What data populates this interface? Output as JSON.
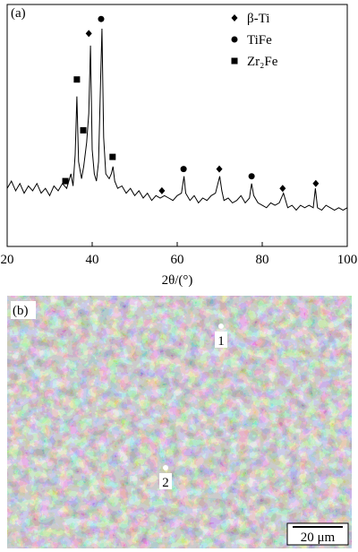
{
  "chart_data": {
    "type": "line",
    "panel_label": "(a)",
    "x_label": "2θ/(°)",
    "x": [
      20,
      21,
      22,
      23,
      24,
      25,
      26,
      27,
      28,
      29,
      30,
      31,
      32,
      33,
      34,
      35,
      35.5,
      36,
      36.4,
      36.8,
      37.5,
      38,
      38.7,
      39.2,
      39.6,
      40,
      40.5,
      41,
      41.5,
      42,
      42.3,
      42.7,
      43.2,
      44,
      44.5,
      44.9,
      45.3,
      46,
      47,
      48,
      49,
      50,
      51,
      52,
      53,
      54,
      55,
      56,
      57,
      58,
      59,
      60,
      61,
      61.6,
      62,
      63,
      64,
      65,
      66,
      67,
      68,
      69,
      70,
      70.5,
      71,
      72,
      73,
      74,
      75,
      76,
      77,
      77.5,
      78,
      79,
      80,
      81,
      82,
      83,
      84,
      85,
      86,
      87,
      88,
      89,
      90,
      91,
      92,
      92.5,
      93,
      94,
      95,
      96,
      97,
      98,
      99,
      100
    ],
    "series": [
      {
        "color": "#000000",
        "values": [
          24,
          27,
          23,
          26,
          22,
          25,
          23,
          26,
          22,
          24,
          21,
          25,
          23,
          26,
          24,
          30,
          25,
          38,
          62,
          35,
          28,
          33,
          43,
          55,
          83,
          40,
          30,
          27,
          35,
          70,
          90,
          45,
          30,
          28,
          30,
          33,
          27,
          24,
          25,
          22,
          24,
          21,
          23,
          20,
          22,
          19,
          21,
          20,
          21,
          20,
          19,
          21,
          22,
          29,
          22,
          19,
          21,
          18,
          20,
          19,
          21,
          22,
          29,
          23,
          19,
          20,
          18,
          19,
          21,
          18,
          20,
          26,
          21,
          18,
          17,
          16,
          18,
          17,
          18,
          22,
          16,
          17,
          15,
          17,
          16,
          17,
          16,
          24,
          16,
          15,
          17,
          16,
          15,
          16,
          15,
          16
        ]
      }
    ],
    "xlim": [
      20,
      100
    ],
    "xticks": [
      20,
      40,
      60,
      80,
      100
    ],
    "ylim": [
      0,
      100
    ],
    "markers": [
      {
        "name": "β-Ti",
        "symbol": "diamond",
        "x": [
          39.2,
          56.4,
          69.9,
          84.8,
          92.6
        ],
        "y": [
          88,
          23,
          32,
          24,
          26
        ]
      },
      {
        "name": "TiFe",
        "symbol": "circle",
        "x": [
          42.1,
          61.5,
          77.5
        ],
        "y": [
          94,
          32,
          29
        ]
      },
      {
        "name": "Zr₂Fe",
        "symbol": "square",
        "x": [
          33.7,
          36.4,
          37.9,
          44.8
        ],
        "y": [
          27,
          69,
          48,
          37
        ]
      }
    ]
  },
  "micrograph": {
    "panel_label": "(b)",
    "points": [
      "1",
      "2"
    ],
    "scale_bar": "20 μm"
  }
}
